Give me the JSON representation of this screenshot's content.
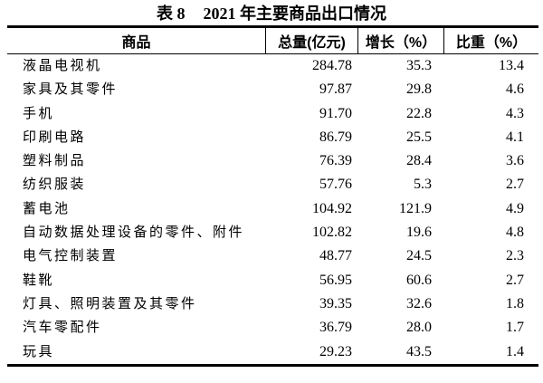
{
  "page": {
    "background": "#ffffff",
    "text_color": "#000000"
  },
  "title": {
    "label": "表 8",
    "text": "2021 年主要商品出口情况"
  },
  "table": {
    "columns": [
      "商品",
      "总量(亿元)",
      "增长（%）",
      "比重（%）"
    ],
    "rows": [
      [
        "液晶电视机",
        "284.78",
        "35.3",
        "13.4"
      ],
      [
        "家具及其零件",
        "97.87",
        "29.8",
        "4.6"
      ],
      [
        "手机",
        "91.70",
        "22.8",
        "4.3"
      ],
      [
        "印刷电路",
        "86.79",
        "25.5",
        "4.1"
      ],
      [
        "塑料制品",
        "76.39",
        "28.4",
        "3.6"
      ],
      [
        "纺织服装",
        "57.76",
        "5.3",
        "2.7"
      ],
      [
        "蓄电池",
        "104.92",
        "121.9",
        "4.9"
      ],
      [
        "自动数据处理设备的零件、附件",
        "102.82",
        "19.6",
        "4.8"
      ],
      [
        "电气控制装置",
        "48.77",
        "24.5",
        "2.3"
      ],
      [
        "鞋靴",
        "56.95",
        "60.6",
        "2.7"
      ],
      [
        "灯具、照明装置及其零件",
        "39.35",
        "32.6",
        "1.8"
      ],
      [
        "汽车零配件",
        "36.79",
        "28.0",
        "1.7"
      ],
      [
        "玩具",
        "29.23",
        "43.5",
        "1.4"
      ]
    ]
  }
}
